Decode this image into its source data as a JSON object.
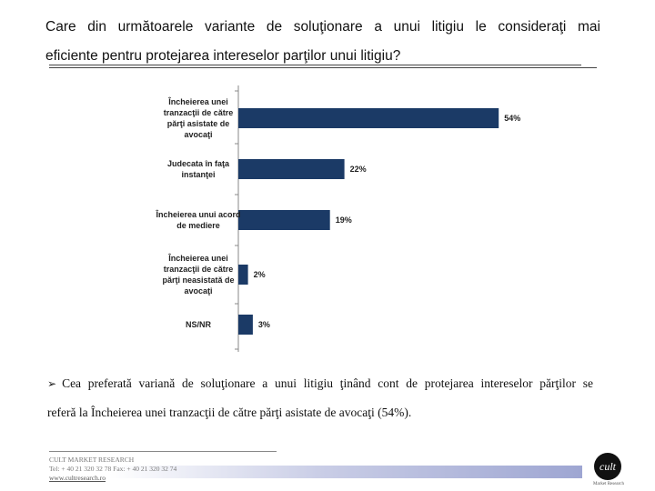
{
  "question": {
    "line1": "Care din următoarele variante de soluţionare a unui litigiu le consideraţi mai",
    "line2": "eficiente pentru protejarea intereselor parţilor unui litigiu?"
  },
  "chart_data": {
    "type": "bar",
    "orientation": "horizontal",
    "categories": [
      [
        "Încheierea unei",
        "tranzacţii de către",
        "părţi asistate de",
        "avocaţi"
      ],
      [
        "Judecata în faţa",
        "instanţei"
      ],
      [
        "Încheierea unui acord",
        "de mediere"
      ],
      [
        "Încheierea unei",
        "tranzacţii de către",
        "părţi neasistată de",
        "avocaţi"
      ],
      [
        "NS/NR"
      ]
    ],
    "values": [
      54,
      22,
      19,
      2,
      3
    ],
    "value_labels": [
      "54%",
      "22%",
      "19%",
      "2%",
      "3%"
    ],
    "xlim": [
      0,
      60
    ],
    "bar_color": "#1b3a66",
    "title": "",
    "xlabel": "",
    "ylabel": ""
  },
  "note": {
    "line1": "Cea preferată variană de soluţionare a unui litigiu ţinând cont de protejarea intereselor părţilor se",
    "line2": "referă la Încheierea unei tranzacţii de către părţi asistate de avocaţi (54%)."
  },
  "footer": {
    "company": "CULT MARKET RESEARCH",
    "contact": "Tel: + 40 21 320 32 78   Fax: + 40 21 320 32 74",
    "website": "www.cultresearch.ro"
  },
  "logo": {
    "mark": "cult",
    "caption": "Market Research"
  }
}
